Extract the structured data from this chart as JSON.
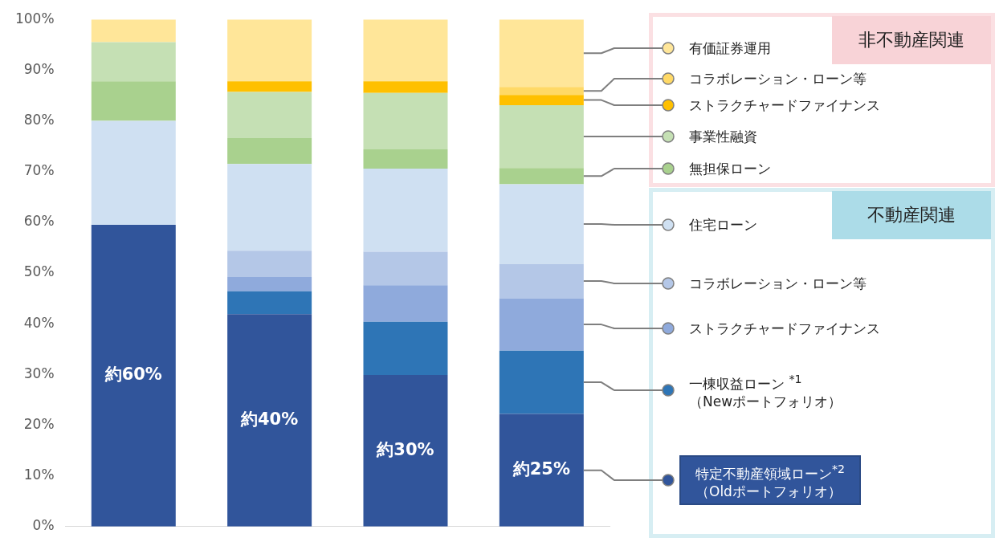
{
  "chart_data": {
    "type": "bar",
    "stacked": true,
    "categories": [
      null,
      null,
      null,
      null
    ],
    "ylim": [
      0,
      100
    ],
    "yticks": [
      {
        "value": 0,
        "label": "0%"
      },
      {
        "value": 10,
        "label": "10%"
      },
      {
        "value": 20,
        "label": "20%"
      },
      {
        "value": 30,
        "label": "30%"
      },
      {
        "value": 40,
        "label": "40%"
      },
      {
        "value": 50,
        "label": "50%"
      },
      {
        "value": 60,
        "label": "60%"
      },
      {
        "value": 70,
        "label": "70%"
      },
      {
        "value": 80,
        "label": "80%"
      },
      {
        "value": 90,
        "label": "90%"
      },
      {
        "value": 100,
        "label": "100%"
      }
    ],
    "grid": false,
    "legend": "right",
    "annotations": [
      "非不動産関連",
      "不動産関連"
    ],
    "series": [
      {
        "name": "特定不動産領域ローン$^{*2}$\n（Oldポートフォリオ）",
        "color": "#31559b",
        "values": [
          59.5,
          41.9,
          29.9,
          22.2
        ],
        "value_labels": [
          "約60%",
          "約40%",
          "約30%",
          "約25%"
        ]
      },
      {
        "name": "一棟収益ローン $^{*1}$\n（Newポートフォリオ）",
        "color": "#2e75b6",
        "values": [
          0,
          4.5,
          10.5,
          12.5
        ]
      },
      {
        "name": "ストラクチャードファイナンス",
        "color": "#8faadc",
        "values": [
          0,
          2.8,
          7.2,
          10.3
        ]
      },
      {
        "name": "コラボレーション・ローン等",
        "color": "#b4c7e7",
        "values": [
          0,
          5.2,
          6.6,
          6.8
        ]
      },
      {
        "name": "住宅ローン",
        "color": "#cfe0f2",
        "values": [
          20.5,
          17.1,
          16.4,
          15.7
        ]
      },
      {
        "name": "無担保ローン",
        "color": "#a9d18e",
        "values": [
          7.8,
          5.1,
          3.8,
          3.2
        ]
      },
      {
        "name": "事業性融資",
        "color": "#c5e0b4",
        "values": [
          7.7,
          9.1,
          11.1,
          12.4
        ]
      },
      {
        "name": "ストラクチャードファイナンス",
        "color": "#ffc000",
        "values": [
          0,
          2.1,
          2.3,
          2.0
        ]
      },
      {
        "name": "コラボレーション・ローン等",
        "color": "#ffd966",
        "values": [
          0,
          0,
          0,
          1.6
        ]
      },
      {
        "name": "有価証券運用",
        "color": "#ffe699",
        "values": [
          4.5,
          12.2,
          12.2,
          13.3
        ]
      }
    ]
  }
}
